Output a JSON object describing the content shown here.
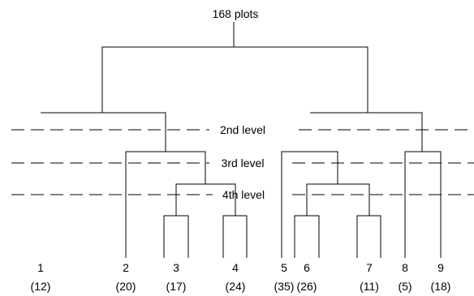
{
  "root_label": "168 plots",
  "levels": [
    {
      "id": "level-2",
      "label": "2nd level"
    },
    {
      "id": "level-3",
      "label": "3rd level"
    },
    {
      "id": "level-4",
      "label": "4th level"
    }
  ],
  "groups": [
    {
      "id": "1",
      "label": "1",
      "count": "(12)"
    },
    {
      "id": "2",
      "label": "2",
      "count": "(20)"
    },
    {
      "id": "3",
      "label": "3",
      "count": "(17)"
    },
    {
      "id": "4",
      "label": "4",
      "count": "(24)"
    },
    {
      "id": "5",
      "label": "5",
      "count": "(35)"
    },
    {
      "id": "6",
      "label": "6",
      "count": "(26)"
    },
    {
      "id": "7",
      "label": "7",
      "count": "(11)"
    },
    {
      "id": "8",
      "label": "8",
      "count": "(5)"
    },
    {
      "id": "9",
      "label": "9",
      "count": "(18)"
    }
  ]
}
